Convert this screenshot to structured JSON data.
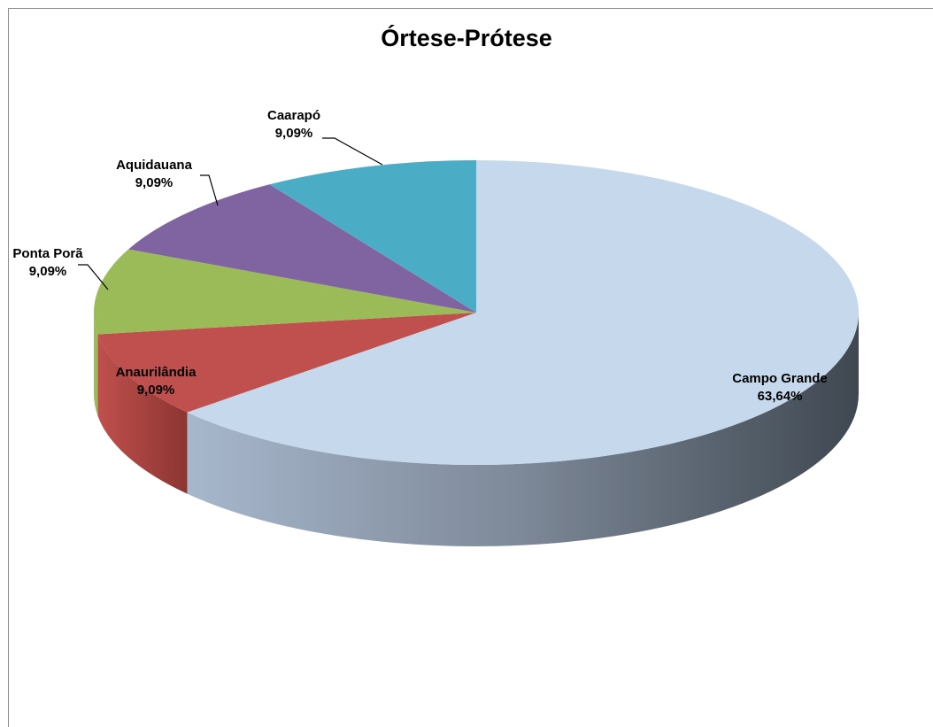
{
  "chart_data": {
    "type": "pie",
    "title": "Órtese-Prótese",
    "categories": [
      "Campo Grande",
      "Anaurilândia",
      "Ponta Porã",
      "Aquidauana",
      "Caarapó"
    ],
    "values": [
      63.64,
      9.09,
      9.09,
      9.09,
      9.09
    ],
    "value_labels": [
      "63,64%",
      "9,09%",
      "9,09%",
      "9,09%",
      "9,09%"
    ],
    "colors": [
      "#c6d9ec",
      "#c0504d",
      "#9bbb59",
      "#8064a2",
      "#4bacc6"
    ],
    "style": "3d",
    "legend": "none"
  }
}
